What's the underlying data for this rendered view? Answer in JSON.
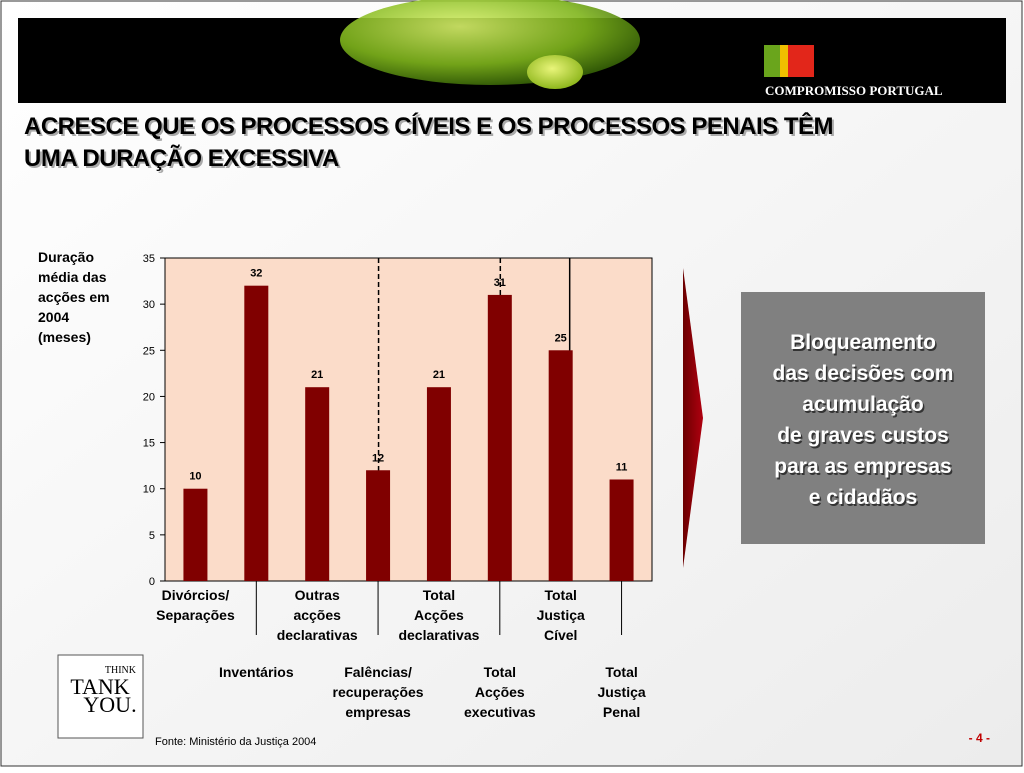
{
  "chart_data": {
    "type": "bar",
    "title": "ACRESCE QUE OS PROCESSOS CÍVEIS E OS PROCESSOS PENAIS TÊM\nUMA DURAÇÃO EXCESSIVA",
    "y_label": "Duração\nmédia das\nacções em\n2004\n(meses)",
    "categories": [
      "Divórcios/\nSeparações",
      "Inventários",
      "Outras\nacções\ndeclarativas",
      "Falências/\nrecuperações\nempresas",
      "Total\nAcções\ndeclarativas",
      "Total\nAcções\nexecutivas",
      "Total\nJustiça\nCível",
      "Total\nJustiça\nPenal"
    ],
    "values": [
      10,
      32,
      21,
      12,
      21,
      31,
      25,
      11
    ],
    "color": "#800000",
    "ylim": [
      0,
      35
    ],
    "yticks": [
      0,
      5,
      10,
      15,
      20,
      25,
      30,
      35
    ]
  },
  "header": {
    "brand": "COMPROMISSO PORTUGAL"
  },
  "callout": "Bloqueamento\ndas decisões com\nacumulação\nde graves custos\npara as empresas\ne cidadãos",
  "logo": {
    "top": "THINK",
    "middle": "TANK",
    "bottom": "YOU."
  },
  "source": "Fonte:  Ministério da Justiça 2004",
  "page_number": "- 4 -"
}
